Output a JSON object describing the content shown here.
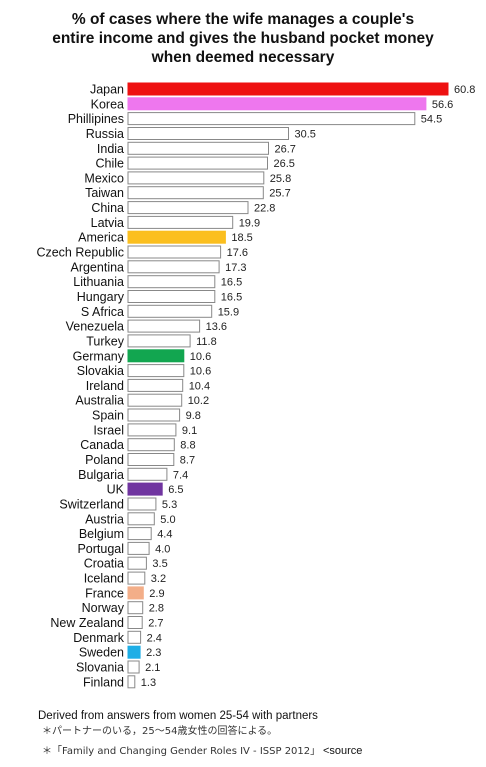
{
  "chart_data": {
    "type": "bar",
    "orientation": "horizontal",
    "title_lines": [
      "% of cases where the wife manages a couple's",
      "entire income and gives the husband pocket money",
      "when deemed necessary"
    ],
    "categories": [
      "Japan",
      "Korea",
      "Phillipines",
      "Russia",
      "India",
      "Chile",
      "Mexico",
      "Taiwan",
      "China",
      "Latvia",
      "America",
      "Czech Republic",
      "Argentina",
      "Lithuania",
      "Hungary",
      "S Africa",
      "Venezuela",
      "Turkey",
      "Germany",
      "Slovakia",
      "Ireland",
      "Australia",
      "Spain",
      "Israel",
      "Canada",
      "Poland",
      "Bulgaria",
      "UK",
      "Switzerland",
      "Austria",
      "Belgium",
      "Portugal",
      "Croatia",
      "Iceland",
      "France",
      "Norway",
      "New Zealand",
      "Denmark",
      "Sweden",
      "Slovania",
      "Finland"
    ],
    "values": [
      60.8,
      56.6,
      54.5,
      30.5,
      26.7,
      26.5,
      25.8,
      25.7,
      22.8,
      19.9,
      18.5,
      17.6,
      17.3,
      16.5,
      16.5,
      15.9,
      13.6,
      11.8,
      10.6,
      10.6,
      10.4,
      10.2,
      9.8,
      9.1,
      8.8,
      8.7,
      7.4,
      6.5,
      5.3,
      5.0,
      4.4,
      4.0,
      3.5,
      3.2,
      2.9,
      2.8,
      2.7,
      2.4,
      2.3,
      2.1,
      1.3
    ],
    "value_labels": [
      "60.8",
      "56.6",
      "54.5",
      "30.5",
      "26.7",
      "26.5",
      "25.8",
      "25.7",
      "22.8",
      "19.9",
      "18.5",
      "17.6",
      "17.3",
      "16.5",
      "16.5",
      "15.9",
      "13.6",
      "11.8",
      "10.6",
      "10.6",
      "10.4",
      "10.2",
      "9.8",
      "9.1",
      "8.8",
      "8.7",
      "7.4",
      "6.5",
      "5.3",
      "5.0",
      "4.4",
      "4.0",
      "3.5",
      "3.2",
      "2.9",
      "2.8",
      "2.7",
      "2.4",
      "2.3",
      "2.1",
      "1.3"
    ],
    "highlight_colors": {
      "Japan": "#ee1111",
      "Korea": "#ee77ee",
      "America": "#fbbf1f",
      "Germany": "#12a650",
      "UK": "#7035a0",
      "France": "#f3ae88",
      "Sweden": "#1eaee6"
    },
    "default_fill": "#ffffff",
    "bar_outline": "#888888",
    "xlim": [
      0,
      60.8
    ],
    "grid": false,
    "legend": "none"
  },
  "notes": {
    "derived": "Derived from answers from women 25-54 with partners",
    "jp_note": "＊パートナーのいる，25～54歳女性の回答による。",
    "source_jp": "＊「Family and Changing Gender Roles IV - ISSP 2012」",
    "source_en": "<source"
  }
}
